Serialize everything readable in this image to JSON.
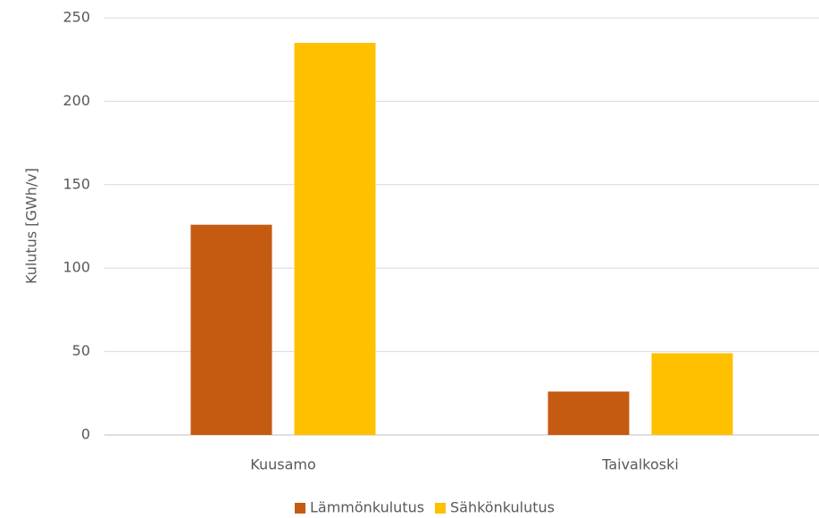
{
  "chart_data": {
    "type": "bar",
    "y_label": "Kulutus [GWh/v]",
    "categories": [
      "Kuusamo",
      "Taivalkoski"
    ],
    "series": [
      {
        "name": "Lämmönkulutus",
        "color": "#c55a11",
        "values": [
          126,
          26
        ]
      },
      {
        "name": "Sähkönkulutus",
        "color": "#ffc000",
        "values": [
          235,
          49
        ]
      }
    ],
    "ylim": [
      0,
      250
    ],
    "yticks": [
      0,
      50,
      100,
      150,
      200,
      250
    ],
    "grid": true,
    "legend": "bottom"
  }
}
